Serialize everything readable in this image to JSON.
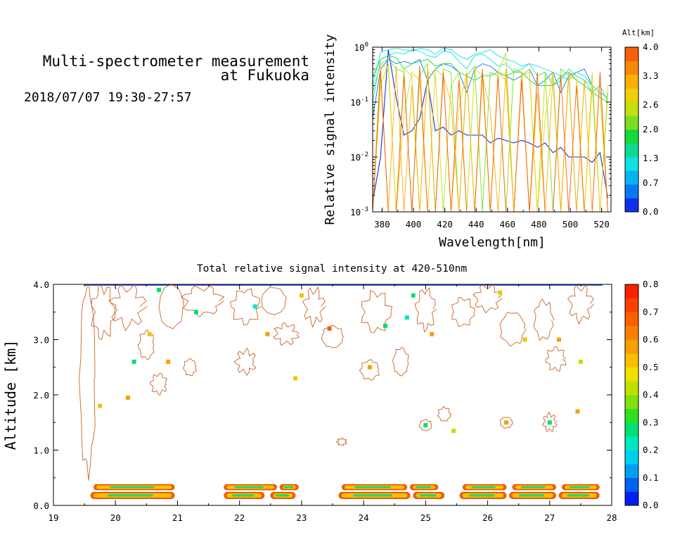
{
  "header": {
    "title_line1": "Multi-spectrometer measurement",
    "title_line2": "at Fukuoka",
    "datetime": "2018/07/07 19:30-27:57"
  },
  "colors": {
    "altitude_scale": [
      "#1030e8",
      "#0a78f0",
      "#08b4f0",
      "#10e0e0",
      "#10d890",
      "#18d838",
      "#78e020",
      "#c0e010",
      "#f0d008",
      "#f8b008",
      "#f88808",
      "#f86008"
    ],
    "intensity_scale": [
      "#0020f0",
      "#0060f0",
      "#00a0f0",
      "#00d0f0",
      "#00e8c0",
      "#00e070",
      "#30e020",
      "#80e010",
      "#c0e000",
      "#f0e000",
      "#f8c000",
      "#f8a000",
      "#f88000",
      "#f86000",
      "#f84000",
      "#f82000"
    ]
  },
  "chart_data": [
    {
      "type": "line",
      "title": "",
      "xlabel": "Wavelength[nm]",
      "ylabel": "Relative signal intensity",
      "xlim": [
        374,
        526
      ],
      "ylim": [
        0.001,
        1
      ],
      "yscale": "log",
      "x_ticks": [
        "380",
        "400",
        "420",
        "440",
        "460",
        "480",
        "500",
        "520"
      ],
      "y_ticks": [
        {
          "base": "10",
          "exp": "-3"
        },
        {
          "base": "10",
          "exp": "-2"
        },
        {
          "base": "10",
          "exp": "-1"
        },
        {
          "base": "10",
          "exp": "0"
        }
      ],
      "colorbar": {
        "label": "Alt[km]",
        "ticks": [
          "0.0",
          "0.7",
          "1.3",
          "2.0",
          "2.6",
          "3.3",
          "4.0"
        ],
        "range": [
          0,
          4
        ]
      },
      "x": [
        374,
        379,
        384,
        389,
        394,
        399,
        404,
        409,
        414,
        419,
        424,
        429,
        434,
        439,
        444,
        449,
        454,
        459,
        464,
        469,
        474,
        479,
        484,
        489,
        494,
        499,
        504,
        509,
        514,
        519,
        524
      ],
      "series": [
        {
          "alt": 0.2,
          "values": [
            0.0015,
            0.01,
            0.9,
            0.12,
            0.025,
            0.03,
            0.05,
            0.25,
            0.03,
            0.035,
            0.025,
            0.03,
            0.025,
            0.025,
            0.025,
            0.018,
            0.022,
            0.02,
            0.018,
            0.02,
            0.018,
            0.015,
            0.018,
            0.012,
            0.015,
            0.01,
            0.01,
            0.01,
            0.008,
            0.012,
            0.0018
          ]
        },
        {
          "alt": 0.6,
          "values": [
            0.05,
            0.4,
            0.6,
            0.5,
            0.55,
            0.5,
            0.6,
            0.25,
            0.4,
            0.5,
            0.45,
            0.35,
            0.15,
            0.4,
            0.5,
            0.45,
            0.35,
            0.3,
            0.25,
            0.3,
            0.4,
            0.2,
            0.25,
            0.35,
            0.15,
            0.3,
            0.35,
            0.4,
            0.2,
            0.15,
            0.12
          ]
        },
        {
          "alt": 1.0,
          "values": [
            0.1,
            0.6,
            0.7,
            0.8,
            0.75,
            0.9,
            0.85,
            0.7,
            0.65,
            0.85,
            0.8,
            0.55,
            0.4,
            0.7,
            0.75,
            0.6,
            0.45,
            0.5,
            0.35,
            0.4,
            0.5,
            0.3,
            0.35,
            0.2,
            0.25,
            0.4,
            0.3,
            0.25,
            0.15,
            0.2,
            0.1
          ]
        },
        {
          "alt": 1.3,
          "values": [
            0.2,
            0.8,
            0.9,
            0.95,
            0.9,
            0.85,
            0.95,
            0.9,
            0.75,
            0.95,
            0.9,
            0.7,
            0.6,
            0.75,
            0.8,
            0.9,
            0.7,
            0.6,
            0.55,
            0.45,
            0.5,
            0.45,
            0.4,
            0.35,
            0.3,
            0.25,
            0.35,
            0.3,
            0.2,
            0.15,
            0.12
          ]
        },
        {
          "alt": 1.7,
          "values": [
            0.3,
            0.6,
            0.7,
            0.65,
            0.4,
            0.5,
            0.55,
            0.6,
            0.45,
            0.5,
            0.5,
            0.35,
            0.3,
            0.25,
            0.3,
            0.3,
            0.35,
            0.3,
            0.35,
            0.35,
            0.25,
            0.2,
            0.2,
            0.2,
            0.3,
            0.35,
            0.25,
            0.2,
            0.15,
            0.12,
            0.1
          ]
        },
        {
          "alt": 2.1,
          "values": [
            0.15,
            0.5,
            0.6,
            0.4,
            0.35,
            0.001,
            0.3,
            0.5,
            0.001,
            0.4,
            0.35,
            0.001,
            0.3,
            0.45,
            0.001,
            0.35,
            0.3,
            0.001,
            0.4,
            0.35,
            0.001,
            0.3,
            0.35,
            0.001,
            0.4,
            0.3,
            0.001,
            0.25,
            0.2,
            0.001,
            0.15
          ]
        },
        {
          "alt": 2.5,
          "values": [
            0.001,
            0.2,
            0.5,
            0.001,
            0.4,
            0.3,
            0.001,
            0.35,
            0.3,
            0.001,
            0.2,
            0.35,
            0.001,
            0.4,
            0.3,
            0.001,
            0.35,
            0.8,
            0.001,
            0.3,
            0.35,
            0.001,
            0.3,
            0.25,
            0.001,
            0.35,
            0.3,
            0.001,
            0.2,
            0.15,
            0.001
          ]
        },
        {
          "alt": 2.9,
          "values": [
            0.001,
            0.5,
            0.4,
            0.001,
            0.06,
            0.35,
            0.25,
            0.001,
            0.4,
            0.3,
            0.001,
            0.08,
            0.35,
            0.001,
            0.3,
            0.001,
            0.35,
            0.25,
            0.001,
            0.3,
            0.4,
            0.001,
            0.05,
            0.35,
            0.001,
            0.3,
            0.25,
            0.001,
            0.35,
            0.001,
            0.2
          ]
        },
        {
          "alt": 3.3,
          "values": [
            0.001,
            0.3,
            0.001,
            0.45,
            0.001,
            0.2,
            0.001,
            0.4,
            0.001,
            0.3,
            0.1,
            0.001,
            0.35,
            0.001,
            0.3,
            0.07,
            0.001,
            0.4,
            0.001,
            0.35,
            0.001,
            0.15,
            0.001,
            0.3,
            0.001,
            0.35,
            0.001,
            0.25,
            0.001,
            0.3,
            0.001
          ]
        },
        {
          "alt": 3.7,
          "values": [
            0.001,
            0.4,
            0.001,
            0.001,
            0.3,
            0.001,
            0.45,
            0.001,
            0.001,
            0.35,
            0.001,
            0.25,
            0.001,
            0.001,
            0.4,
            0.001,
            0.3,
            0.001,
            0.001,
            0.25,
            0.001,
            0.35,
            0.001,
            0.001,
            0.3,
            0.001,
            0.2,
            0.001,
            0.001,
            0.35,
            0.001
          ]
        }
      ]
    },
    {
      "type": "heatmap",
      "title": "Total relative signal intensity at 420-510nm",
      "xlabel": "",
      "ylabel": "Altitude [km]",
      "xlim": [
        19,
        28
      ],
      "ylim": [
        0,
        4
      ],
      "x_ticks": [
        "19",
        "20",
        "21",
        "22",
        "23",
        "24",
        "25",
        "26",
        "27",
        "28"
      ],
      "y_ticks": [
        "0.0",
        "1.0",
        "2.0",
        "3.0",
        "4.0"
      ],
      "colorbar": {
        "ticks": [
          "0.0",
          "0.1",
          "0.2",
          "0.3",
          "0.4",
          "0.5",
          "0.6",
          "0.7",
          "0.8"
        ],
        "range": [
          0,
          0.8
        ]
      },
      "layers": [
        {
          "alt_range": [
            0.12,
            0.24
          ],
          "segments": [
            [
              19.6,
              20.95
            ],
            [
              21.75,
              22.4
            ],
            [
              22.5,
              22.9
            ],
            [
              23.6,
              24.75
            ],
            [
              24.8,
              25.3
            ],
            [
              25.55,
              26.3
            ],
            [
              26.35,
              27.1
            ],
            [
              27.15,
              27.8
            ]
          ],
          "peak": 0.75
        },
        {
          "alt_range": [
            0.28,
            0.38
          ],
          "segments": [
            [
              19.65,
              20.95
            ],
            [
              21.75,
              22.6
            ],
            [
              22.65,
              22.95
            ],
            [
              23.65,
              24.7
            ],
            [
              24.75,
              25.2
            ],
            [
              25.6,
              26.3
            ],
            [
              26.4,
              27.1
            ],
            [
              27.2,
              27.8
            ]
          ],
          "peak": 0.7
        }
      ],
      "cells": [
        {
          "t": 19.75,
          "alt": 1.8,
          "v": 0.5
        },
        {
          "t": 20.2,
          "alt": 1.95,
          "v": 0.6
        },
        {
          "t": 20.3,
          "alt": 2.6,
          "v": 0.3
        },
        {
          "t": 20.85,
          "alt": 2.6,
          "v": 0.6
        },
        {
          "t": 20.55,
          "alt": 3.1,
          "v": 0.5
        },
        {
          "t": 21.3,
          "alt": 3.5,
          "v": 0.3
        },
        {
          "t": 22.25,
          "alt": 3.6,
          "v": 0.2
        },
        {
          "t": 22.45,
          "alt": 3.1,
          "v": 0.6
        },
        {
          "t": 22.9,
          "alt": 2.3,
          "v": 0.5
        },
        {
          "t": 23.45,
          "alt": 3.2,
          "v": 0.7
        },
        {
          "t": 24.1,
          "alt": 2.5,
          "v": 0.6
        },
        {
          "t": 24.35,
          "alt": 3.25,
          "v": 0.3
        },
        {
          "t": 24.7,
          "alt": 3.4,
          "v": 0.2
        },
        {
          "t": 25.0,
          "alt": 1.45,
          "v": 0.3
        },
        {
          "t": 25.1,
          "alt": 3.1,
          "v": 0.6
        },
        {
          "t": 25.45,
          "alt": 1.35,
          "v": 0.4
        },
        {
          "t": 26.3,
          "alt": 1.5,
          "v": 0.6
        },
        {
          "t": 26.6,
          "alt": 3.0,
          "v": 0.5
        },
        {
          "t": 27.0,
          "alt": 1.5,
          "v": 0.3
        },
        {
          "t": 27.15,
          "alt": 3.0,
          "v": 0.6
        },
        {
          "t": 27.45,
          "alt": 1.7,
          "v": 0.6
        },
        {
          "t": 27.5,
          "alt": 2.6,
          "v": 0.4
        },
        {
          "t": 20.7,
          "alt": 3.9,
          "v": 0.3
        },
        {
          "t": 23.0,
          "alt": 3.8,
          "v": 0.5
        },
        {
          "t": 24.8,
          "alt": 3.8,
          "v": 0.3
        },
        {
          "t": 26.2,
          "alt": 3.85,
          "v": 0.5
        }
      ],
      "contours": [
        {
          "t": 19.55,
          "alt": 2.3,
          "w": 0.25,
          "h": 3.4
        },
        {
          "t": 19.8,
          "alt": 3.5,
          "w": 0.35,
          "h": 0.9
        },
        {
          "t": 20.2,
          "alt": 3.6,
          "w": 0.5,
          "h": 0.7
        },
        {
          "t": 20.5,
          "alt": 2.9,
          "w": 0.25,
          "h": 0.5
        },
        {
          "t": 20.9,
          "alt": 3.6,
          "w": 0.4,
          "h": 0.8
        },
        {
          "t": 21.4,
          "alt": 3.7,
          "w": 0.6,
          "h": 0.5
        },
        {
          "t": 22.1,
          "alt": 3.6,
          "w": 0.45,
          "h": 0.6
        },
        {
          "t": 22.55,
          "alt": 3.7,
          "w": 0.4,
          "h": 0.5
        },
        {
          "t": 22.1,
          "alt": 2.6,
          "w": 0.3,
          "h": 0.4
        },
        {
          "t": 22.75,
          "alt": 3.1,
          "w": 0.35,
          "h": 0.35
        },
        {
          "t": 21.2,
          "alt": 2.5,
          "w": 0.2,
          "h": 0.3
        },
        {
          "t": 20.7,
          "alt": 2.2,
          "w": 0.25,
          "h": 0.35
        },
        {
          "t": 23.2,
          "alt": 3.6,
          "w": 0.3,
          "h": 0.6
        },
        {
          "t": 23.5,
          "alt": 3.05,
          "w": 0.35,
          "h": 0.4
        },
        {
          "t": 24.2,
          "alt": 3.5,
          "w": 0.45,
          "h": 0.7
        },
        {
          "t": 24.1,
          "alt": 2.45,
          "w": 0.3,
          "h": 0.35
        },
        {
          "t": 24.6,
          "alt": 2.6,
          "w": 0.25,
          "h": 0.5
        },
        {
          "t": 25.0,
          "alt": 3.55,
          "w": 0.3,
          "h": 0.7
        },
        {
          "t": 25.6,
          "alt": 3.5,
          "w": 0.35,
          "h": 0.5
        },
        {
          "t": 26.0,
          "alt": 3.75,
          "w": 0.4,
          "h": 0.45
        },
        {
          "t": 26.4,
          "alt": 3.2,
          "w": 0.4,
          "h": 0.6
        },
        {
          "t": 26.9,
          "alt": 3.35,
          "w": 0.3,
          "h": 0.7
        },
        {
          "t": 27.1,
          "alt": 2.65,
          "w": 0.3,
          "h": 0.4
        },
        {
          "t": 27.5,
          "alt": 3.65,
          "w": 0.35,
          "h": 0.6
        },
        {
          "t": 25.3,
          "alt": 1.65,
          "w": 0.2,
          "h": 0.25
        },
        {
          "t": 26.3,
          "alt": 1.5,
          "w": 0.2,
          "h": 0.2
        },
        {
          "t": 25.0,
          "alt": 1.45,
          "w": 0.2,
          "h": 0.2
        },
        {
          "t": 23.65,
          "alt": 1.15,
          "w": 0.15,
          "h": 0.12
        },
        {
          "t": 27.0,
          "alt": 1.5,
          "w": 0.2,
          "h": 0.3
        }
      ]
    }
  ]
}
